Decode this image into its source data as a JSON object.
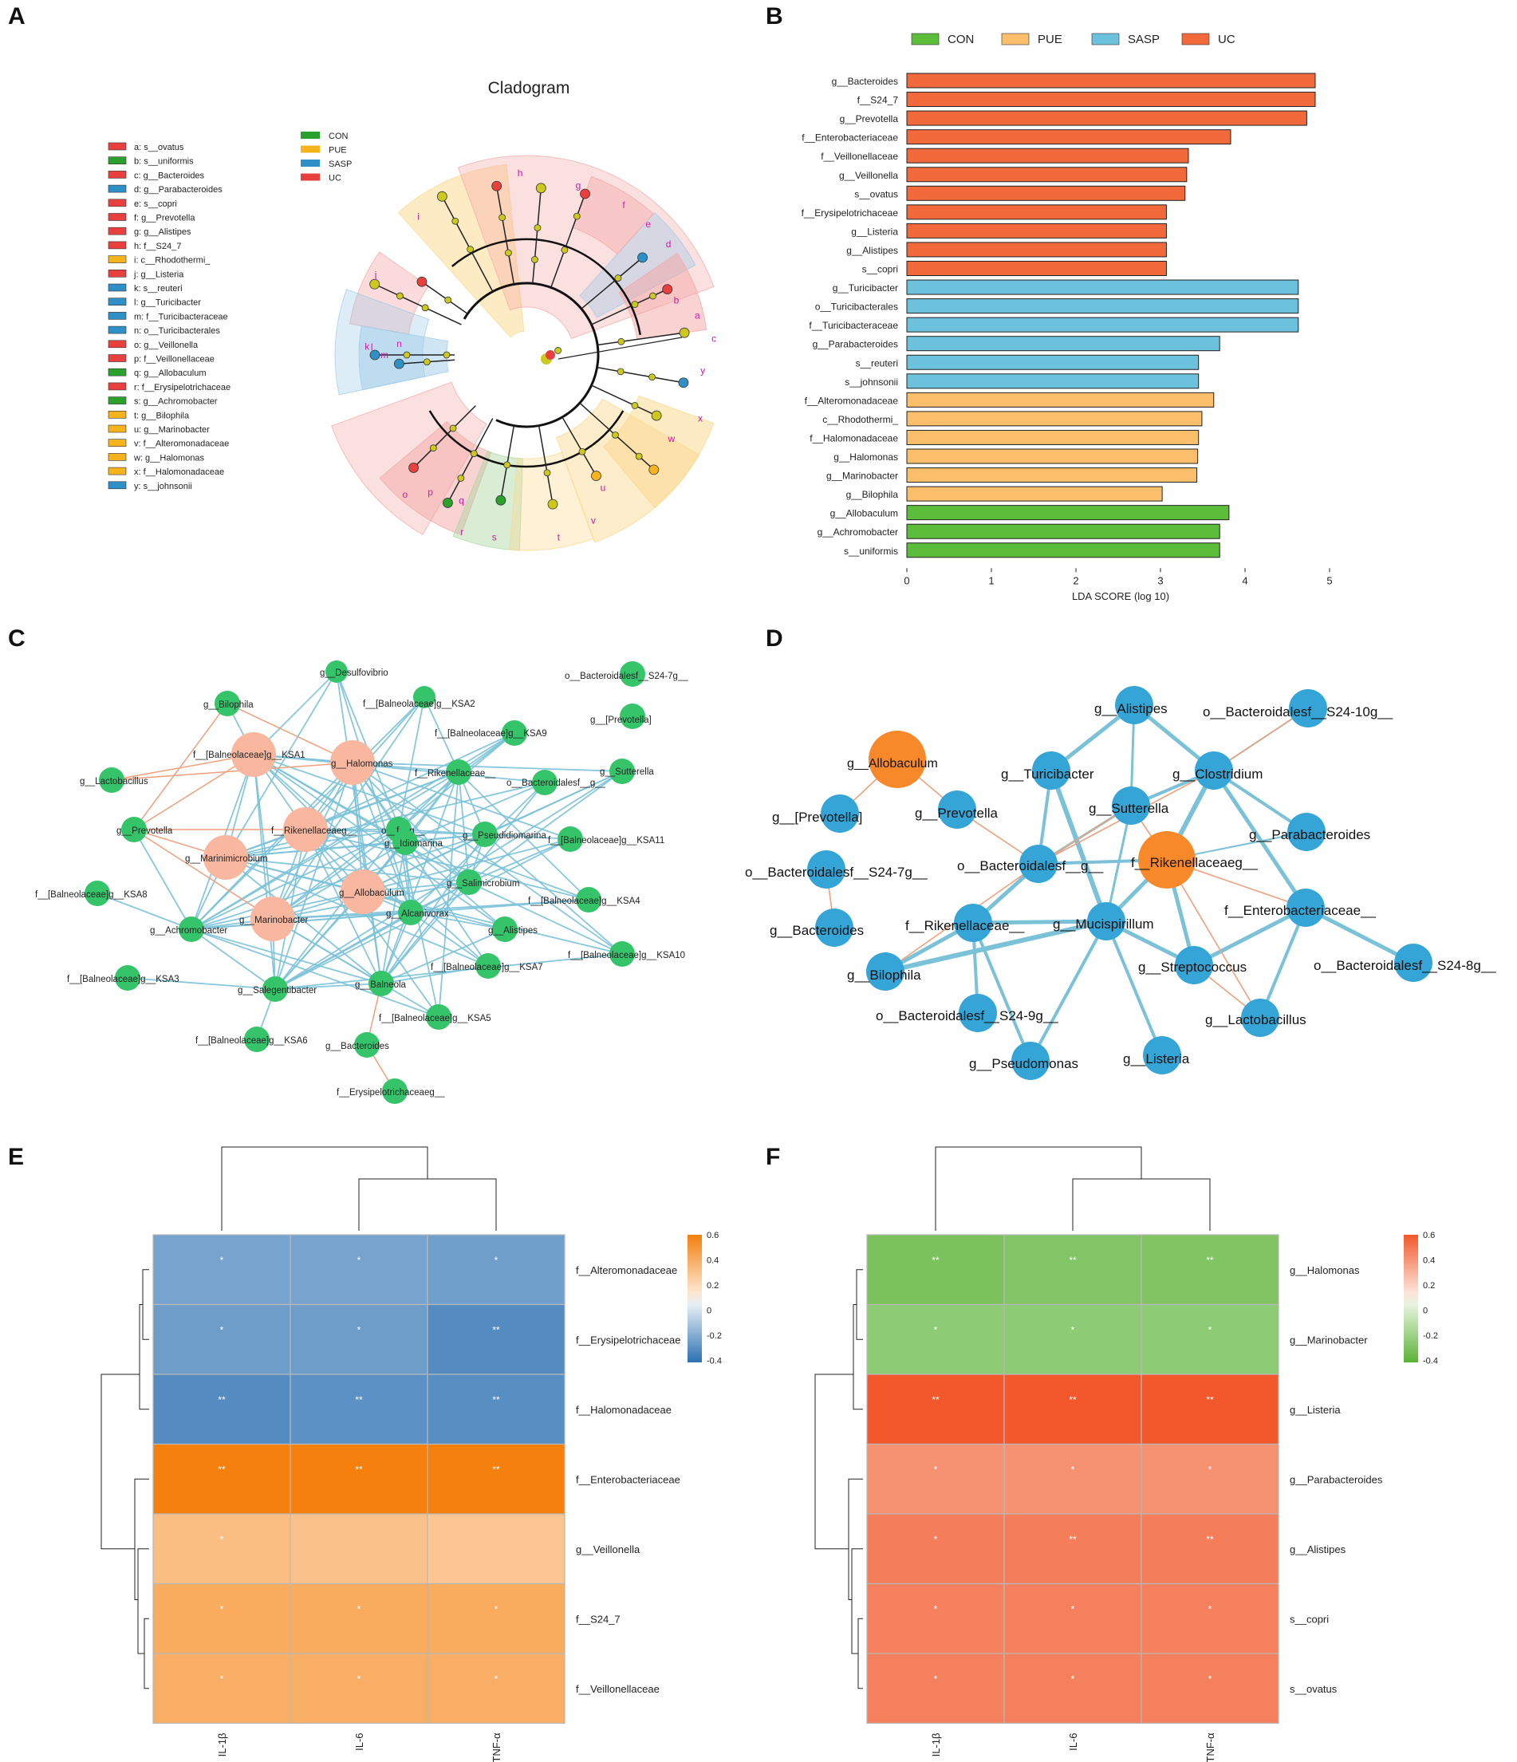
{
  "panel_labels": {
    "a": "A",
    "b": "B",
    "c": "C",
    "d": "D",
    "e": "E",
    "f": "F"
  },
  "colors": {
    "CON": "#5bbd3a",
    "PUE": "#fbbe6a",
    "SASP": "#6cc2dc",
    "UC": "#f26a3c",
    "clado_CON": "#2ca02c",
    "clado_PUE": "#f5b41e",
    "clado_SASP": "#2f8fc7",
    "clado_UC": "#e8403e",
    "node_green": "#35c46a",
    "node_salmon": "#f9b7a0",
    "node_blue": "#35a4d6",
    "node_orange": "#f7892b",
    "edge_pos": "#f0a07c",
    "edge_neg": "#7bc2d8"
  },
  "panelA": {
    "title": "Cladogram",
    "group_legend": [
      {
        "label": "CON",
        "color": "#2ca02c"
      },
      {
        "label": "PUE",
        "color": "#f5b41e"
      },
      {
        "label": "SASP",
        "color": "#2f8fc7"
      },
      {
        "label": "UC",
        "color": "#e8403e"
      }
    ],
    "taxa": [
      {
        "text": "a: s__ovatus",
        "color": "#e8403e"
      },
      {
        "text": "b: s__uniformis",
        "color": "#2ca02c"
      },
      {
        "text": "c: g__Bacteroides",
        "color": "#e8403e"
      },
      {
        "text": "d: g__Parabacteroides",
        "color": "#2f8fc7"
      },
      {
        "text": "e: s__copri",
        "color": "#e8403e"
      },
      {
        "text": "f: g__Prevotella",
        "color": "#e8403e"
      },
      {
        "text": "g: g__Alistipes",
        "color": "#e8403e"
      },
      {
        "text": "h: f__S24_7",
        "color": "#e8403e"
      },
      {
        "text": "i: c__Rhodothermi_",
        "color": "#f5b41e"
      },
      {
        "text": "j: g__Listeria",
        "color": "#e8403e"
      },
      {
        "text": "k: s__reuteri",
        "color": "#2f8fc7"
      },
      {
        "text": "l: g__Turicibacter",
        "color": "#2f8fc7"
      },
      {
        "text": "m: f__Turicibacteraceae",
        "color": "#2f8fc7"
      },
      {
        "text": "n: o__Turicibacterales",
        "color": "#2f8fc7"
      },
      {
        "text": "o: g__Veillonella",
        "color": "#e8403e"
      },
      {
        "text": "p: f__Veillonellaceae",
        "color": "#e8403e"
      },
      {
        "text": "q: g__Allobaculum",
        "color": "#2ca02c"
      },
      {
        "text": "r: f__Erysipelotrichaceae",
        "color": "#e8403e"
      },
      {
        "text": "s: g__Achromobacter",
        "color": "#2ca02c"
      },
      {
        "text": "t: g__Bilophila",
        "color": "#f5b41e"
      },
      {
        "text": "u: g__Marinobacter",
        "color": "#f5b41e"
      },
      {
        "text": "v: f__Alteromonadaceae",
        "color": "#f5b41e"
      },
      {
        "text": "w: g__Halomonas",
        "color": "#f5b41e"
      },
      {
        "text": "x: f__Halomonadaceae",
        "color": "#f5b41e"
      },
      {
        "text": "y: s__johnsonii",
        "color": "#2f8fc7"
      }
    ],
    "sector_letters": [
      "a",
      "b",
      "c",
      "d",
      "e",
      "f",
      "g",
      "h",
      "i",
      "j",
      "k",
      "l",
      "m",
      "n",
      "o",
      "p",
      "q",
      "r",
      "s",
      "t",
      "u",
      "v",
      "w",
      "x",
      "y"
    ]
  },
  "chart_data": [
    {
      "panel": "B",
      "type": "bar",
      "orientation": "horizontal",
      "xlabel": "LDA SCORE (log 10)",
      "xlim": [
        0,
        5
      ],
      "xticks": [
        0,
        1,
        2,
        3,
        4,
        5
      ],
      "legend": [
        "CON",
        "PUE",
        "SASP",
        "UC"
      ],
      "bars": [
        {
          "label": "g__Bacteroides",
          "value": 4.83,
          "group": "UC"
        },
        {
          "label": "f__S24_7",
          "value": 4.83,
          "group": "UC"
        },
        {
          "label": "g__Prevotella",
          "value": 4.73,
          "group": "UC"
        },
        {
          "label": "f__Enterobacteriaceae",
          "value": 3.83,
          "group": "UC"
        },
        {
          "label": "f__Veillonellaceae",
          "value": 3.33,
          "group": "UC"
        },
        {
          "label": "g__Veillonella",
          "value": 3.31,
          "group": "UC"
        },
        {
          "label": "s__ovatus",
          "value": 3.29,
          "group": "UC"
        },
        {
          "label": "f__Erysipelotrichaceae",
          "value": 3.07,
          "group": "UC"
        },
        {
          "label": "g__Listeria",
          "value": 3.07,
          "group": "UC"
        },
        {
          "label": "g__Alistipes",
          "value": 3.07,
          "group": "UC"
        },
        {
          "label": "s__copri",
          "value": 3.07,
          "group": "UC"
        },
        {
          "label": "g__Turicibacter",
          "value": 4.63,
          "group": "SASP"
        },
        {
          "label": "o__Turicibacterales",
          "value": 4.63,
          "group": "SASP"
        },
        {
          "label": "f__Turicibacteraceae",
          "value": 4.63,
          "group": "SASP"
        },
        {
          "label": "g__Parabacteroides",
          "value": 3.7,
          "group": "SASP"
        },
        {
          "label": "s__reuteri",
          "value": 3.45,
          "group": "SASP"
        },
        {
          "label": "s__johnsonii",
          "value": 3.45,
          "group": "SASP"
        },
        {
          "label": "f__Alteromonadaceae",
          "value": 3.63,
          "group": "PUE"
        },
        {
          "label": "c__Rhodothermi_",
          "value": 3.49,
          "group": "PUE"
        },
        {
          "label": "f__Halomonadaceae",
          "value": 3.45,
          "group": "PUE"
        },
        {
          "label": "g__Halomonas",
          "value": 3.44,
          "group": "PUE"
        },
        {
          "label": "g__Marinobacter",
          "value": 3.43,
          "group": "PUE"
        },
        {
          "label": "g__Bilophila",
          "value": 3.02,
          "group": "PUE"
        },
        {
          "label": "g__Allobaculum",
          "value": 3.81,
          "group": "CON"
        },
        {
          "label": "g__Achromobacter",
          "value": 3.7,
          "group": "CON"
        },
        {
          "label": "s__uniformis",
          "value": 3.7,
          "group": "CON"
        }
      ]
    },
    {
      "panel": "E",
      "type": "heatmap",
      "columns": [
        "IL-1β",
        "IL-6",
        "TNF-α"
      ],
      "rows": [
        "f__Alteromonadaceae",
        "f__Erysipelotrichaceae",
        "f__Halomonadaceae",
        "f__Enterobacteriaceae",
        "g__Veillonella",
        "f__S24_7",
        "f__Veillonellaceae"
      ],
      "values": [
        [
          -0.38,
          -0.38,
          -0.4
        ],
        [
          -0.41,
          -0.41,
          -0.49
        ],
        [
          -0.49,
          -0.47,
          -0.48
        ],
        [
          0.62,
          0.62,
          0.62
        ],
        [
          0.3,
          0.28,
          0.26
        ],
        [
          0.4,
          0.4,
          0.4
        ],
        [
          0.38,
          0.38,
          0.38
        ]
      ],
      "significance": [
        [
          "*",
          "*",
          "*"
        ],
        [
          "*",
          "*",
          "**"
        ],
        [
          "**",
          "**",
          "**"
        ],
        [
          "**",
          "**",
          "**"
        ],
        [
          "*",
          "",
          ""
        ],
        [
          "*",
          "*",
          "*"
        ],
        [
          "*",
          "*",
          "*"
        ]
      ],
      "colorbar_ticks": [
        "0.6",
        "0.4",
        "0.2",
        "0",
        "-0.2",
        "-0.4"
      ],
      "scale": "blue-white-orange"
    },
    {
      "panel": "F",
      "type": "heatmap",
      "columns": [
        "IL-1β",
        "IL-6",
        "TNF-α"
      ],
      "rows": [
        "g__Halomonas",
        "g__Marinobacter",
        "g__Listeria",
        "g__Parabacteroides",
        "g__Alistipes",
        "s__copri",
        "s__ovatus"
      ],
      "values": [
        [
          -0.48,
          -0.45,
          -0.46
        ],
        [
          -0.4,
          -0.4,
          -0.4
        ],
        [
          0.62,
          0.62,
          0.62
        ],
        [
          0.38,
          0.38,
          0.38
        ],
        [
          0.46,
          0.46,
          0.46
        ],
        [
          0.45,
          0.45,
          0.45
        ],
        [
          0.45,
          0.45,
          0.45
        ]
      ],
      "significance": [
        [
          "**",
          "**",
          "**"
        ],
        [
          "*",
          "*",
          "*"
        ],
        [
          "**",
          "**",
          "**"
        ],
        [
          "*",
          "*",
          "*"
        ],
        [
          "*",
          "**",
          "**"
        ],
        [
          "*",
          "*",
          "*"
        ],
        [
          "*",
          "*",
          "*"
        ]
      ],
      "colorbar_ticks": [
        "0.6",
        "0.4",
        "0.2",
        "0",
        "-0.2",
        "-0.4"
      ],
      "scale": "green-white-orange"
    }
  ],
  "panelC": {
    "nodes": [
      {
        "id": "Desulfovibrio",
        "label": "g__Desulfovibrio",
        "type": "green",
        "r": 12
      },
      {
        "id": "KSA2",
        "label": "f__[Balneolaceae]g__KSA2",
        "type": "green",
        "r": 12
      },
      {
        "id": "S247g",
        "label": "o__Bacteroidalesf__S24-7g__",
        "type": "green",
        "r": 14
      },
      {
        "id": "Prevotella_b",
        "label": "g__[Prevotella]",
        "type": "green",
        "r": 14
      },
      {
        "id": "Bilophila",
        "label": "g__Bilophila",
        "type": "green",
        "r": 14
      },
      {
        "id": "KSA9",
        "label": "f__[Balneolaceae]g__KSA9",
        "type": "green",
        "r": 14
      },
      {
        "id": "Sutterella",
        "label": "g__Sutterella",
        "type": "green",
        "r": 14
      },
      {
        "id": "KSA1",
        "label": "f__[Balneolaceae]g__KSA1",
        "type": "salmon",
        "r": 26
      },
      {
        "id": "Halomonas",
        "label": "g__Halomonas",
        "type": "salmon",
        "r": 26
      },
      {
        "id": "Rikenellaceae_",
        "label": "f__Rikenellaceae__",
        "type": "green",
        "r": 14
      },
      {
        "id": "Bacteroidalesf",
        "label": "o__Bacteroidalesf__g__",
        "type": "green",
        "r": 14
      },
      {
        "id": "Lactobacillus",
        "label": "g__Lactobacillus",
        "type": "green",
        "r": 14
      },
      {
        "id": "off",
        "label": "o__f__g__",
        "type": "green",
        "r": 14
      },
      {
        "id": "Prevotella",
        "label": "g__Prevotella",
        "type": "green",
        "r": 14
      },
      {
        "id": "Rikenellaceaeg",
        "label": "f__Rikenellaceaeg__",
        "type": "salmon",
        "r": 26
      },
      {
        "id": "Idiomarina",
        "label": "g__Idiomarina",
        "type": "green",
        "r": 14
      },
      {
        "id": "Pseudidiomarina",
        "label": "g__Pseudidiomarina",
        "type": "green",
        "r": 14
      },
      {
        "id": "KSA11",
        "label": "f__[Balneolaceae]g__KSA11",
        "type": "green",
        "r": 14
      },
      {
        "id": "Marinimicrobium",
        "label": "g__Marinimicrobium",
        "type": "salmon",
        "r": 26
      },
      {
        "id": "Salimicrobium",
        "label": "g__Salimicrobium",
        "type": "green",
        "r": 14
      },
      {
        "id": "KSA8",
        "label": "f__[Balneolaceae]g__KSA8",
        "type": "green",
        "r": 14
      },
      {
        "id": "Allobaculum",
        "label": "g__Allobaculum",
        "type": "salmon",
        "r": 26
      },
      {
        "id": "KSA4",
        "label": "f__[Balneolaceae]g__KSA4",
        "type": "green",
        "r": 14
      },
      {
        "id": "Marinobacter",
        "label": "g__Marinobacter",
        "type": "salmon",
        "r": 26
      },
      {
        "id": "Alcanivorax",
        "label": "g__Alcanivorax",
        "type": "green",
        "r": 14
      },
      {
        "id": "Achromobacter",
        "label": "g__Achromobacter",
        "type": "green",
        "r": 14
      },
      {
        "id": "Alistipes",
        "label": "g__Alistipes",
        "type": "green",
        "r": 14
      },
      {
        "id": "KSA10",
        "label": "f__[Balneolaceae]g__KSA10",
        "type": "green",
        "r": 14
      },
      {
        "id": "KSA7",
        "label": "f__[Balneolaceae]g__KSA7",
        "type": "green",
        "r": 14
      },
      {
        "id": "KSA3",
        "label": "f__[Balneolaceae]g__KSA3",
        "type": "green",
        "r": 14
      },
      {
        "id": "Balneola",
        "label": "g__Balneola",
        "type": "green",
        "r": 14
      },
      {
        "id": "Salegentibacter",
        "label": "g__Salegentibacter",
        "type": "green",
        "r": 14
      },
      {
        "id": "KSA5",
        "label": "f__[Balneolaceae]g__KSA5",
        "type": "green",
        "r": 14
      },
      {
        "id": "KSA6",
        "label": "f__[Balneolaceae]g__KSA6",
        "type": "green",
        "r": 14
      },
      {
        "id": "Bacteroides",
        "label": "g__Bacteroides",
        "type": "green",
        "r": 14
      },
      {
        "id": "Erysipelo",
        "label": "f__Erysipelotrichaceaeg__",
        "type": "green",
        "r": 14
      }
    ]
  },
  "panelD": {
    "nodes": [
      {
        "id": "Allobaculum",
        "label": "g__Allobaculum",
        "type": "orange"
      },
      {
        "id": "Alistipes",
        "label": "g__Alistipes",
        "type": "blue"
      },
      {
        "id": "S2410g",
        "label": "o__Bacteroidalesf__S24-10g__",
        "type": "blue"
      },
      {
        "id": "Turicibacter",
        "label": "g__Turicibacter",
        "type": "blue"
      },
      {
        "id": "Clostridium",
        "label": "g__Clostridium",
        "type": "blue"
      },
      {
        "id": "Prevotella_b",
        "label": "g__[Prevotella]",
        "type": "blue"
      },
      {
        "id": "Prevotella",
        "label": "g__Prevotella",
        "type": "blue"
      },
      {
        "id": "Sutterella",
        "label": "g__Sutterella",
        "type": "blue"
      },
      {
        "id": "Parabacteroides",
        "label": "g__Parabacteroides",
        "type": "blue"
      },
      {
        "id": "S247g",
        "label": "o__Bacteroidalesf__S24-7g__",
        "type": "blue"
      },
      {
        "id": "Bacteroidalesfg",
        "label": "o__Bacteroidalesf__g__",
        "type": "blue"
      },
      {
        "id": "Rikenellaceaeg",
        "label": "f__Rikenellaceaeg__",
        "type": "orange"
      },
      {
        "id": "Enterobacteriaceae",
        "label": "f__Enterobacteriaceae__",
        "type": "blue"
      },
      {
        "id": "Bacteroides",
        "label": "g__Bacteroides",
        "type": "blue"
      },
      {
        "id": "Rikenellaceae_",
        "label": "f__Rikenellaceae__",
        "type": "blue"
      },
      {
        "id": "Mucispirillum",
        "label": "g__Mucispirillum",
        "type": "blue"
      },
      {
        "id": "S248g",
        "label": "o__Bacteroidalesf__S24-8g__",
        "type": "blue"
      },
      {
        "id": "Streptococcus",
        "label": "g__Streptococcus",
        "type": "blue"
      },
      {
        "id": "Bilophila",
        "label": "g__Bilophila",
        "type": "blue"
      },
      {
        "id": "S249g",
        "label": "o__Bacteroidalesf__S24-9g__",
        "type": "blue"
      },
      {
        "id": "Lactobacillus",
        "label": "g__Lactobacillus",
        "type": "blue"
      },
      {
        "id": "Listeria",
        "label": "g__Listeria",
        "type": "blue"
      },
      {
        "id": "Pseudomonas",
        "label": "g__Pseudomonas",
        "type": "blue"
      }
    ]
  }
}
